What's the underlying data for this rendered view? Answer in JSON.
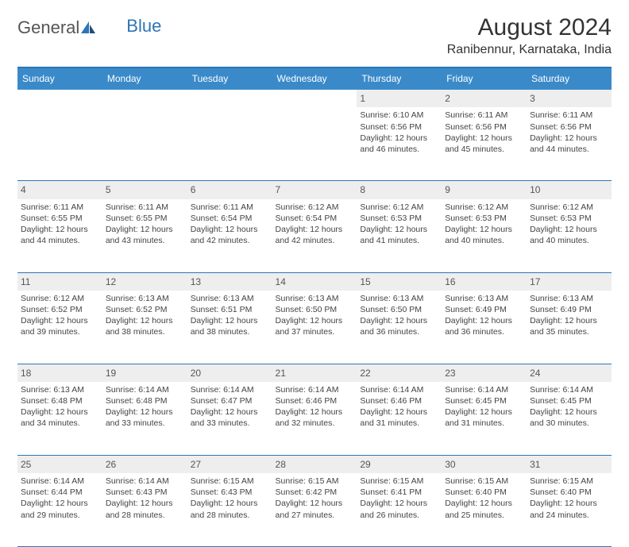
{
  "logo": {
    "text1": "General",
    "text2": "Blue"
  },
  "title": "August 2024",
  "location": "Ranibennur, Karnataka, India",
  "colors": {
    "header_bg": "#3a8ac9",
    "header_text": "#ffffff",
    "border": "#2e75b6",
    "daynum_bg": "#eeeeee",
    "body_text": "#444444",
    "page_bg": "#ffffff"
  },
  "day_headers": [
    "Sunday",
    "Monday",
    "Tuesday",
    "Wednesday",
    "Thursday",
    "Friday",
    "Saturday"
  ],
  "weeks": [
    [
      {
        "n": "",
        "sr": "",
        "ss": "",
        "dl": ""
      },
      {
        "n": "",
        "sr": "",
        "ss": "",
        "dl": ""
      },
      {
        "n": "",
        "sr": "",
        "ss": "",
        "dl": ""
      },
      {
        "n": "",
        "sr": "",
        "ss": "",
        "dl": ""
      },
      {
        "n": "1",
        "sr": "Sunrise: 6:10 AM",
        "ss": "Sunset: 6:56 PM",
        "dl": "Daylight: 12 hours and 46 minutes."
      },
      {
        "n": "2",
        "sr": "Sunrise: 6:11 AM",
        "ss": "Sunset: 6:56 PM",
        "dl": "Daylight: 12 hours and 45 minutes."
      },
      {
        "n": "3",
        "sr": "Sunrise: 6:11 AM",
        "ss": "Sunset: 6:56 PM",
        "dl": "Daylight: 12 hours and 44 minutes."
      }
    ],
    [
      {
        "n": "4",
        "sr": "Sunrise: 6:11 AM",
        "ss": "Sunset: 6:55 PM",
        "dl": "Daylight: 12 hours and 44 minutes."
      },
      {
        "n": "5",
        "sr": "Sunrise: 6:11 AM",
        "ss": "Sunset: 6:55 PM",
        "dl": "Daylight: 12 hours and 43 minutes."
      },
      {
        "n": "6",
        "sr": "Sunrise: 6:11 AM",
        "ss": "Sunset: 6:54 PM",
        "dl": "Daylight: 12 hours and 42 minutes."
      },
      {
        "n": "7",
        "sr": "Sunrise: 6:12 AM",
        "ss": "Sunset: 6:54 PM",
        "dl": "Daylight: 12 hours and 42 minutes."
      },
      {
        "n": "8",
        "sr": "Sunrise: 6:12 AM",
        "ss": "Sunset: 6:53 PM",
        "dl": "Daylight: 12 hours and 41 minutes."
      },
      {
        "n": "9",
        "sr": "Sunrise: 6:12 AM",
        "ss": "Sunset: 6:53 PM",
        "dl": "Daylight: 12 hours and 40 minutes."
      },
      {
        "n": "10",
        "sr": "Sunrise: 6:12 AM",
        "ss": "Sunset: 6:53 PM",
        "dl": "Daylight: 12 hours and 40 minutes."
      }
    ],
    [
      {
        "n": "11",
        "sr": "Sunrise: 6:12 AM",
        "ss": "Sunset: 6:52 PM",
        "dl": "Daylight: 12 hours and 39 minutes."
      },
      {
        "n": "12",
        "sr": "Sunrise: 6:13 AM",
        "ss": "Sunset: 6:52 PM",
        "dl": "Daylight: 12 hours and 38 minutes."
      },
      {
        "n": "13",
        "sr": "Sunrise: 6:13 AM",
        "ss": "Sunset: 6:51 PM",
        "dl": "Daylight: 12 hours and 38 minutes."
      },
      {
        "n": "14",
        "sr": "Sunrise: 6:13 AM",
        "ss": "Sunset: 6:50 PM",
        "dl": "Daylight: 12 hours and 37 minutes."
      },
      {
        "n": "15",
        "sr": "Sunrise: 6:13 AM",
        "ss": "Sunset: 6:50 PM",
        "dl": "Daylight: 12 hours and 36 minutes."
      },
      {
        "n": "16",
        "sr": "Sunrise: 6:13 AM",
        "ss": "Sunset: 6:49 PM",
        "dl": "Daylight: 12 hours and 36 minutes."
      },
      {
        "n": "17",
        "sr": "Sunrise: 6:13 AM",
        "ss": "Sunset: 6:49 PM",
        "dl": "Daylight: 12 hours and 35 minutes."
      }
    ],
    [
      {
        "n": "18",
        "sr": "Sunrise: 6:13 AM",
        "ss": "Sunset: 6:48 PM",
        "dl": "Daylight: 12 hours and 34 minutes."
      },
      {
        "n": "19",
        "sr": "Sunrise: 6:14 AM",
        "ss": "Sunset: 6:48 PM",
        "dl": "Daylight: 12 hours and 33 minutes."
      },
      {
        "n": "20",
        "sr": "Sunrise: 6:14 AM",
        "ss": "Sunset: 6:47 PM",
        "dl": "Daylight: 12 hours and 33 minutes."
      },
      {
        "n": "21",
        "sr": "Sunrise: 6:14 AM",
        "ss": "Sunset: 6:46 PM",
        "dl": "Daylight: 12 hours and 32 minutes."
      },
      {
        "n": "22",
        "sr": "Sunrise: 6:14 AM",
        "ss": "Sunset: 6:46 PM",
        "dl": "Daylight: 12 hours and 31 minutes."
      },
      {
        "n": "23",
        "sr": "Sunrise: 6:14 AM",
        "ss": "Sunset: 6:45 PM",
        "dl": "Daylight: 12 hours and 31 minutes."
      },
      {
        "n": "24",
        "sr": "Sunrise: 6:14 AM",
        "ss": "Sunset: 6:45 PM",
        "dl": "Daylight: 12 hours and 30 minutes."
      }
    ],
    [
      {
        "n": "25",
        "sr": "Sunrise: 6:14 AM",
        "ss": "Sunset: 6:44 PM",
        "dl": "Daylight: 12 hours and 29 minutes."
      },
      {
        "n": "26",
        "sr": "Sunrise: 6:14 AM",
        "ss": "Sunset: 6:43 PM",
        "dl": "Daylight: 12 hours and 28 minutes."
      },
      {
        "n": "27",
        "sr": "Sunrise: 6:15 AM",
        "ss": "Sunset: 6:43 PM",
        "dl": "Daylight: 12 hours and 28 minutes."
      },
      {
        "n": "28",
        "sr": "Sunrise: 6:15 AM",
        "ss": "Sunset: 6:42 PM",
        "dl": "Daylight: 12 hours and 27 minutes."
      },
      {
        "n": "29",
        "sr": "Sunrise: 6:15 AM",
        "ss": "Sunset: 6:41 PM",
        "dl": "Daylight: 12 hours and 26 minutes."
      },
      {
        "n": "30",
        "sr": "Sunrise: 6:15 AM",
        "ss": "Sunset: 6:40 PM",
        "dl": "Daylight: 12 hours and 25 minutes."
      },
      {
        "n": "31",
        "sr": "Sunrise: 6:15 AM",
        "ss": "Sunset: 6:40 PM",
        "dl": "Daylight: 12 hours and 24 minutes."
      }
    ]
  ]
}
